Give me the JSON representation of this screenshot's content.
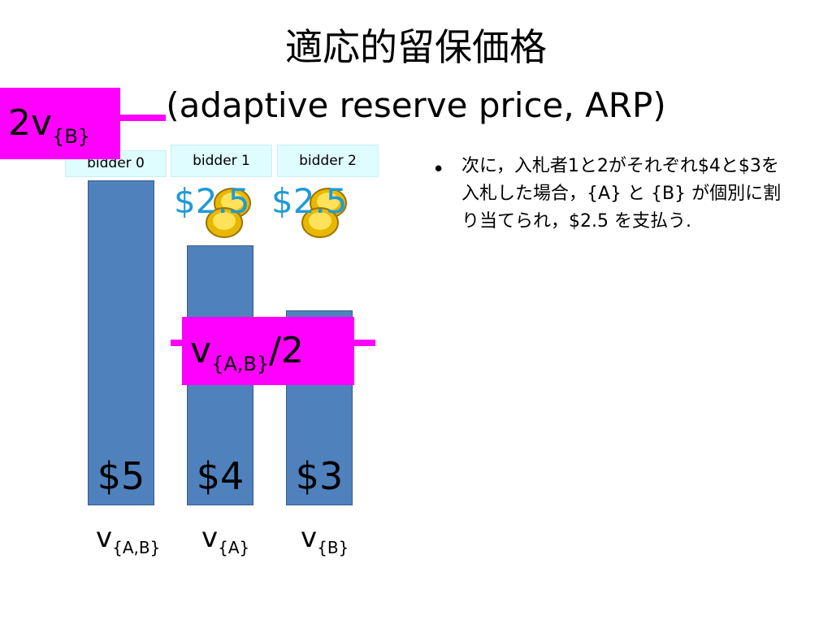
{
  "title": {
    "japanese": "適応的留保価格",
    "english": "(adaptive reserve price, ARP)"
  },
  "bidders": [
    "bidder 0",
    "bidder 1",
    "bidder 2"
  ],
  "bars": [
    {
      "value": 5,
      "label": "$5"
    },
    {
      "value": 4,
      "label": "$4"
    },
    {
      "value": 3,
      "label": "$3"
    }
  ],
  "x_labels": [
    {
      "base": "v",
      "sub": "{A,B}"
    },
    {
      "base": "v",
      "sub": "{A}"
    },
    {
      "base": "v",
      "sub": "{B}"
    }
  ],
  "reserve_labels": {
    "two_vb": {
      "base": "2v",
      "sub": "{B}"
    },
    "vab_half": {
      "base": "v",
      "sub": "{A,B}",
      "suffix": "/2"
    }
  },
  "payments": [
    "$2.5",
    "$2.5"
  ],
  "bullet": {
    "marker": "•",
    "text": "次に，入札者1と2がそれぞれ$4と$3を入札した場合，{A} と {B} が個別に割り当てられ，$2.5 を支払う."
  },
  "colors": {
    "bar": "#4f81bd",
    "highlight": "#ff00ff",
    "label_bg": "#dffcff",
    "price_text": "#1e9bd7"
  },
  "icons": [
    "gold-coins-icon"
  ]
}
